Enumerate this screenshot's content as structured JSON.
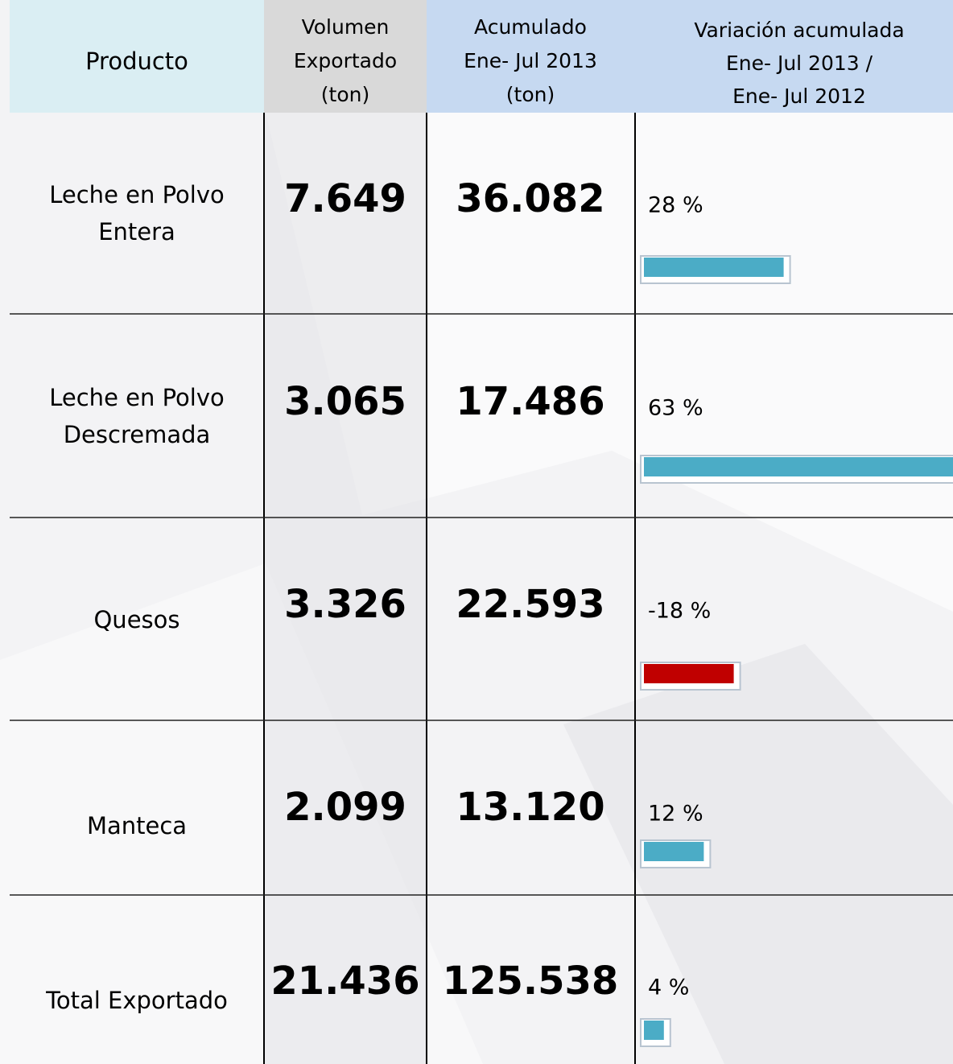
{
  "table": {
    "header": [
      [
        "Producto"
      ],
      [
        "Volumen",
        "Exportado",
        "(ton)"
      ],
      [
        "Acumulado",
        "Ene- Jul 2013",
        "(ton)"
      ],
      [
        "Variación acumulada",
        "Ene- Jul 2013 /",
        "Ene- Jul 2012"
      ]
    ],
    "rows": [
      {
        "product": [
          "Leche en Polvo",
          "Entera"
        ],
        "volume": "7.649",
        "accumulated": "36.082",
        "variation": 28,
        "variation_label": "28 %"
      },
      {
        "product": [
          "Leche en Polvo",
          "Descremada"
        ],
        "volume": "3.065",
        "accumulated": "17.486",
        "variation": 63,
        "variation_label": "63 %"
      },
      {
        "product": [
          "Quesos"
        ],
        "volume": "3.326",
        "accumulated": "22.593",
        "variation": -18,
        "variation_label": "-18 %"
      },
      {
        "product": [
          "Manteca"
        ],
        "volume": "2.099",
        "accumulated": "13.120",
        "variation": 12,
        "variation_label": "12 %"
      },
      {
        "product": [
          "Total Exportado"
        ],
        "volume": "21.436",
        "accumulated": "125.538",
        "variation": 4,
        "variation_label": "4 %"
      }
    ],
    "colors": {
      "positive": "#4bacc6",
      "negative": "#c00000"
    }
  }
}
